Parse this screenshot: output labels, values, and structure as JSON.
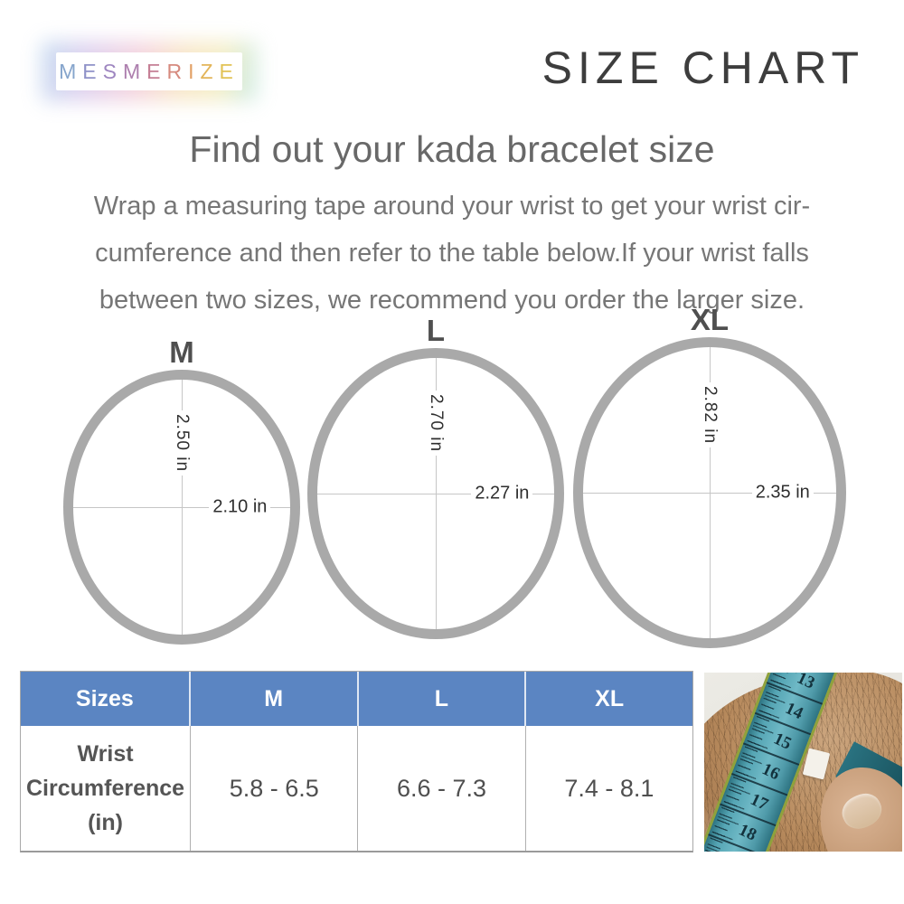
{
  "header": {
    "title": "SIZE CHART"
  },
  "brand": {
    "name": "MESMERIZE",
    "letters": [
      {
        "char": "M",
        "color": "#86a5cc"
      },
      {
        "char": "E",
        "color": "#8f92c8"
      },
      {
        "char": "S",
        "color": "#9e86c0"
      },
      {
        "char": "M",
        "color": "#ad7fae"
      },
      {
        "char": "E",
        "color": "#c57f95"
      },
      {
        "char": "R",
        "color": "#d68a7e"
      },
      {
        "char": "I",
        "color": "#e2a065"
      },
      {
        "char": "Z",
        "color": "#e3b55a"
      },
      {
        "char": "E",
        "color": "#e2c356"
      }
    ]
  },
  "intro": {
    "heading": "Find out your kada bracelet size",
    "lines": [
      "Wrap a measuring tape around your wrist to get your wrist cir-",
      "cumference and then refer to the table below.If your wrist falls",
      "between two sizes, we recommend you order the larger size."
    ]
  },
  "rings": [
    {
      "label": "M",
      "vertical_diameter": "2.50 in",
      "horizontal_diameter": "2.10 in"
    },
    {
      "label": "L",
      "vertical_diameter": "2.70 in",
      "horizontal_diameter": "2.27 in"
    },
    {
      "label": "XL",
      "vertical_diameter": "2.82 in",
      "horizontal_diameter": "2.35 in"
    }
  ],
  "size_table": {
    "headers": [
      "Sizes",
      "M",
      "L",
      "XL"
    ],
    "row_label": "Wrist Circumference (in)",
    "values": [
      "5.8 - 6.5",
      "6.6 - 7.3",
      "7.4 - 8.1"
    ]
  },
  "photo": {
    "tape_numbers": [
      "13",
      "14",
      "15",
      "16",
      "17",
      "18"
    ]
  },
  "colors": {
    "table_header_blue": "#5b85c2",
    "ring_gray": "#a9a9a9",
    "crosshair_gray": "#c6c6c6",
    "title_dark": "#3d3d3d",
    "heading_gray": "#686868",
    "body_text_gray": "#767676",
    "tape_teal": "#4f9fae"
  }
}
